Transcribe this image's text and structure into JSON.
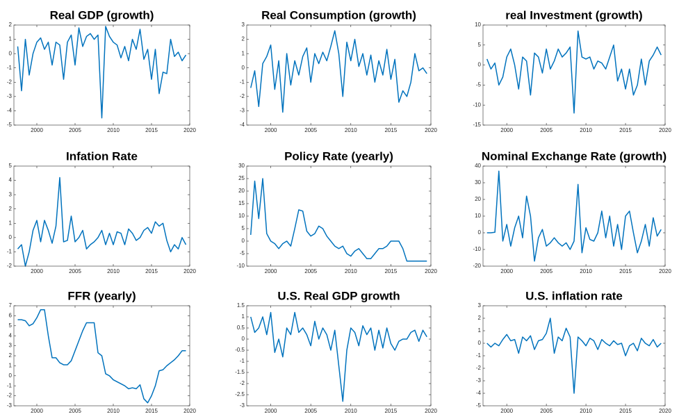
{
  "chart_data": [
    {
      "type": "line",
      "title": "Real GDP (growth)",
      "color": "#0072bd",
      "xlim": [
        1997,
        2020
      ],
      "xticks": [
        2000,
        2005,
        2010,
        2015,
        2020
      ],
      "ylim": [
        -5,
        2
      ],
      "yticks": [
        -5,
        -4,
        -3,
        -2,
        -1,
        0,
        1,
        2
      ],
      "x": [
        1997.5,
        1998,
        1998.5,
        1999,
        1999.5,
        2000,
        2000.5,
        2001,
        2001.5,
        2002,
        2002.5,
        2003,
        2003.5,
        2004,
        2004.5,
        2005,
        2005.5,
        2006,
        2006.5,
        2007,
        2007.5,
        2008,
        2008.5,
        2009,
        2009.5,
        2010,
        2010.5,
        2011,
        2011.5,
        2012,
        2012.5,
        2013,
        2013.5,
        2014,
        2014.5,
        2015,
        2015.5,
        2016,
        2016.5,
        2017,
        2017.5,
        2018,
        2018.5,
        2019,
        2019.5
      ],
      "values": [
        0.5,
        -2.6,
        1.0,
        -1.5,
        0,
        0.8,
        1.1,
        0.3,
        0.8,
        -0.8,
        0.8,
        0.6,
        -1.8,
        0.8,
        1.3,
        -0.8,
        1.8,
        0.5,
        1.2,
        1.4,
        1.0,
        1.3,
        -4.5,
        1.9,
        1.2,
        0.8,
        0.6,
        -0.3,
        0.5,
        -0.5,
        1.0,
        0.3,
        1.7,
        -0.4,
        0.3,
        -1.8,
        0.3,
        -2.8,
        -1.3,
        -1.4,
        1.0,
        -0.2,
        0.1,
        -0.5,
        -0.1
      ]
    },
    {
      "type": "line",
      "title": "Real Consumption (growth)",
      "color": "#0072bd",
      "xlim": [
        1997,
        2020
      ],
      "xticks": [
        2000,
        2005,
        2010,
        2015,
        2020
      ],
      "ylim": [
        -4,
        3
      ],
      "yticks": [
        -4,
        -3,
        -2,
        -1,
        0,
        1,
        2,
        3
      ],
      "x": [
        1997.5,
        1998,
        1998.5,
        1999,
        1999.5,
        2000,
        2000.5,
        2001,
        2001.5,
        2002,
        2002.5,
        2003,
        2003.5,
        2004,
        2004.5,
        2005,
        2005.5,
        2006,
        2006.5,
        2007,
        2007.5,
        2008,
        2008.5,
        2009,
        2009.5,
        2010,
        2010.5,
        2011,
        2011.5,
        2012,
        2012.5,
        2013,
        2013.5,
        2014,
        2014.5,
        2015,
        2015.5,
        2016,
        2016.5,
        2017,
        2017.5,
        2018,
        2018.5,
        2019,
        2019.5
      ],
      "values": [
        -1.4,
        -0.2,
        -2.7,
        0.3,
        0.8,
        1.6,
        -1.5,
        0.5,
        -3.1,
        1.0,
        -1.2,
        0.5,
        -0.5,
        0.8,
        1.4,
        -1.0,
        1.0,
        0.3,
        1.1,
        0.5,
        1.5,
        2.6,
        1.0,
        -2.0,
        1.8,
        0.5,
        2.0,
        0.1,
        1.0,
        -0.5,
        0.9,
        -1.0,
        0.5,
        -0.5,
        1.3,
        -0.8,
        0.6,
        -2.4,
        -1.6,
        -2.0,
        -1.0,
        1.0,
        -0.2,
        0,
        -0.4
      ]
    },
    {
      "type": "line",
      "title": "real Investment (growth)",
      "color": "#0072bd",
      "xlim": [
        1997,
        2020
      ],
      "xticks": [
        2000,
        2005,
        2010,
        2015,
        2020
      ],
      "ylim": [
        -15,
        10
      ],
      "yticks": [
        -15,
        -10,
        -5,
        0,
        5,
        10
      ],
      "x": [
        1997.5,
        1998,
        1998.5,
        1999,
        1999.5,
        2000,
        2000.5,
        2001,
        2001.5,
        2002,
        2002.5,
        2003,
        2003.5,
        2004,
        2004.5,
        2005,
        2005.5,
        2006,
        2006.5,
        2007,
        2007.5,
        2008,
        2008.5,
        2009,
        2009.5,
        2010,
        2010.5,
        2011,
        2011.5,
        2012,
        2012.5,
        2013,
        2013.5,
        2014,
        2014.5,
        2015,
        2015.5,
        2016,
        2016.5,
        2017,
        2017.5,
        2018,
        2018.5,
        2019,
        2019.5
      ],
      "values": [
        1.5,
        -1.0,
        0.5,
        -5.0,
        -3.0,
        2.0,
        4.0,
        0,
        -6.0,
        2.0,
        1.0,
        -7.5,
        3.0,
        2.0,
        -2.0,
        4.0,
        -1.0,
        1.0,
        4.0,
        2.0,
        3.0,
        4.5,
        -12.0,
        8.5,
        2.0,
        1.5,
        2.0,
        -1.0,
        1.0,
        0.5,
        -1.0,
        2.0,
        5.0,
        -4.0,
        -1.0,
        -6.0,
        -1.0,
        -7.5,
        -5.0,
        1.5,
        -5.0,
        1.0,
        2.5,
        4.5,
        2.5
      ]
    },
    {
      "type": "line",
      "title": "Infation Rate",
      "color": "#0072bd",
      "xlim": [
        1997,
        2020
      ],
      "xticks": [
        2000,
        2005,
        2010,
        2015,
        2020
      ],
      "ylim": [
        -2,
        5
      ],
      "yticks": [
        -2,
        -1,
        0,
        1,
        2,
        3,
        4,
        5
      ],
      "x": [
        1997.5,
        1998,
        1998.5,
        1999,
        1999.5,
        2000,
        2000.5,
        2001,
        2001.5,
        2002,
        2002.5,
        2003,
        2003.5,
        2004,
        2004.5,
        2005,
        2005.5,
        2006,
        2006.5,
        2007,
        2007.5,
        2008,
        2008.5,
        2009,
        2009.5,
        2010,
        2010.5,
        2011,
        2011.5,
        2012,
        2012.5,
        2013,
        2013.5,
        2014,
        2014.5,
        2015,
        2015.5,
        2016,
        2016.5,
        2017,
        2017.5,
        2018,
        2018.5,
        2019,
        2019.5
      ],
      "values": [
        -0.8,
        -0.5,
        -2.0,
        -1.0,
        0.5,
        1.2,
        -0.3,
        1.2,
        0.5,
        -0.4,
        0.8,
        4.2,
        -0.3,
        -0.2,
        1.5,
        -0.3,
        0,
        0.5,
        -0.8,
        -0.5,
        -0.3,
        0,
        0.5,
        -0.5,
        0.3,
        -0.5,
        0.4,
        0.3,
        -0.5,
        0.6,
        0.3,
        -0.2,
        0,
        0.5,
        0.7,
        0.3,
        1.1,
        0.8,
        1.0,
        -0.2,
        -1.0,
        -0.5,
        -0.8,
        0,
        -0.5
      ]
    },
    {
      "type": "line",
      "title": "Policy Rate (yearly)",
      "color": "#0072bd",
      "xlim": [
        1997,
        2020
      ],
      "xticks": [
        2000,
        2005,
        2010,
        2015,
        2020
      ],
      "ylim": [
        -10,
        30
      ],
      "yticks": [
        -10,
        -5,
        0,
        5,
        10,
        15,
        20,
        25,
        30
      ],
      "x": [
        1997.5,
        1998,
        1998.5,
        1999,
        1999.5,
        2000,
        2000.5,
        2001,
        2001.5,
        2002,
        2002.5,
        2003,
        2003.5,
        2004,
        2004.5,
        2005,
        2005.5,
        2006,
        2006.5,
        2007,
        2007.5,
        2008,
        2008.5,
        2009,
        2009.5,
        2010,
        2010.5,
        2011,
        2011.5,
        2012,
        2012.5,
        2013,
        2013.5,
        2014,
        2014.5,
        2015,
        2015.5,
        2016,
        2016.5,
        2017,
        2017.5,
        2018,
        2018.5,
        2019,
        2019.5
      ],
      "values": [
        2.5,
        24,
        9,
        25,
        3,
        0,
        -1,
        -3,
        -1,
        0,
        -2,
        5,
        12.5,
        12,
        4,
        2,
        3,
        6,
        5,
        2,
        0,
        -2,
        -3,
        -2,
        -5,
        -6,
        -4,
        -3,
        -5,
        -7,
        -7,
        -5,
        -3,
        -3,
        -2,
        0,
        0,
        0,
        -3,
        -8,
        -8,
        -8,
        -8,
        -8,
        -8
      ]
    },
    {
      "type": "line",
      "title": "Nominal Exchange Rate (growth)",
      "color": "#0072bd",
      "xlim": [
        1997,
        2020
      ],
      "xticks": [
        2000,
        2005,
        2010,
        2015,
        2020
      ],
      "ylim": [
        -20,
        40
      ],
      "yticks": [
        -20,
        -10,
        0,
        10,
        20,
        30,
        40
      ],
      "x": [
        1997.5,
        1998,
        1998.5,
        1999,
        1999.5,
        2000,
        2000.5,
        2001,
        2001.5,
        2002,
        2002.5,
        2003,
        2003.5,
        2004,
        2004.5,
        2005,
        2005.5,
        2006,
        2006.5,
        2007,
        2007.5,
        2008,
        2008.5,
        2009,
        2009.5,
        2010,
        2010.5,
        2011,
        2011.5,
        2012,
        2012.5,
        2013,
        2013.5,
        2014,
        2014.5,
        2015,
        2015.5,
        2016,
        2016.5,
        2017,
        2017.5,
        2018,
        2018.5,
        2019,
        2019.5
      ],
      "values": [
        0,
        0,
        0.3,
        37,
        -5,
        5,
        -8,
        3,
        10,
        -3,
        22,
        10,
        -17,
        -3,
        2,
        -8,
        -6,
        -3,
        -6,
        -8,
        -6,
        -10,
        -5,
        29,
        -12,
        3,
        -4,
        -5,
        0,
        13,
        -3,
        10,
        -8,
        5,
        -10,
        10,
        13,
        0,
        -12,
        -5,
        5,
        -8,
        9,
        -2,
        2
      ]
    },
    {
      "type": "line",
      "title": "FFR (yearly)",
      "color": "#0072bd",
      "xlim": [
        1997,
        2020
      ],
      "xticks": [
        2000,
        2005,
        2010,
        2015,
        2020
      ],
      "ylim": [
        -3,
        7
      ],
      "yticks": [
        -3,
        -2,
        -1,
        0,
        1,
        2,
        3,
        4,
        5,
        6,
        7
      ],
      "x": [
        1997.5,
        1998,
        1998.5,
        1999,
        1999.5,
        2000,
        2000.5,
        2001,
        2001.5,
        2002,
        2002.5,
        2003,
        2003.5,
        2004,
        2004.5,
        2005,
        2005.5,
        2006,
        2006.5,
        2007,
        2007.5,
        2008,
        2008.5,
        2009,
        2009.5,
        2010,
        2010.5,
        2011,
        2011.5,
        2012,
        2012.5,
        2013,
        2013.5,
        2014,
        2014.5,
        2015,
        2015.5,
        2016,
        2016.5,
        2017,
        2017.5,
        2018,
        2018.5,
        2019,
        2019.5
      ],
      "values": [
        5.6,
        5.6,
        5.5,
        5.0,
        5.2,
        5.8,
        6.6,
        6.6,
        4.0,
        1.8,
        1.8,
        1.3,
        1.1,
        1.1,
        1.5,
        2.5,
        3.5,
        4.5,
        5.3,
        5.3,
        5.3,
        2.3,
        2.0,
        0.2,
        0,
        -0.4,
        -0.6,
        -0.8,
        -1.0,
        -1.3,
        -1.2,
        -1.3,
        -0.9,
        -2.3,
        -2.7,
        -2.0,
        -1.0,
        0.5,
        0.6,
        1.0,
        1.3,
        1.6,
        2.0,
        2.5,
        2.5
      ]
    },
    {
      "type": "line",
      "title": "U.S. Real GDP growth",
      "color": "#0072bd",
      "xlim": [
        1997,
        2020
      ],
      "xticks": [
        2000,
        2005,
        2010,
        2015,
        2020
      ],
      "ylim": [
        -3,
        1.5
      ],
      "yticks": [
        -3,
        -2.5,
        -2,
        -1.5,
        -1,
        -0.5,
        0,
        0.5,
        1,
        1.5
      ],
      "x": [
        1997.5,
        1998,
        1998.5,
        1999,
        1999.5,
        2000,
        2000.5,
        2001,
        2001.5,
        2002,
        2002.5,
        2003,
        2003.5,
        2004,
        2004.5,
        2005,
        2005.5,
        2006,
        2006.5,
        2007,
        2007.5,
        2008,
        2008.5,
        2009,
        2009.5,
        2010,
        2010.5,
        2011,
        2011.5,
        2012,
        2012.5,
        2013,
        2013.5,
        2014,
        2014.5,
        2015,
        2015.5,
        2016,
        2016.5,
        2017,
        2017.5,
        2018,
        2018.5,
        2019,
        2019.5
      ],
      "values": [
        1.0,
        0.3,
        0.5,
        1.0,
        0.2,
        1.2,
        -0.6,
        0,
        -0.8,
        0.5,
        0.2,
        1.2,
        0.3,
        0.5,
        0.2,
        -0.3,
        0.8,
        0,
        0.5,
        0.2,
        -0.5,
        0.4,
        -1.2,
        -2.8,
        -0.5,
        0.5,
        0.3,
        -0.3,
        0.6,
        0.2,
        0.5,
        -0.5,
        0.4,
        -0.4,
        0.5,
        -0.2,
        -0.5,
        -0.1,
        0,
        0,
        0.3,
        0.4,
        -0.1,
        0.4,
        0.1
      ]
    },
    {
      "type": "line",
      "title": "U.S. inflation rate",
      "color": "#0072bd",
      "xlim": [
        1997,
        2020
      ],
      "xticks": [
        2000,
        2005,
        2010,
        2015,
        2020
      ],
      "ylim": [
        -5,
        3
      ],
      "yticks": [
        -5,
        -4,
        -3,
        -2,
        -1,
        0,
        1,
        2,
        3
      ],
      "x": [
        1997.5,
        1998,
        1998.5,
        1999,
        1999.5,
        2000,
        2000.5,
        2001,
        2001.5,
        2002,
        2002.5,
        2003,
        2003.5,
        2004,
        2004.5,
        2005,
        2005.5,
        2006,
        2006.5,
        2007,
        2007.5,
        2008,
        2008.5,
        2009,
        2009.5,
        2010,
        2010.5,
        2011,
        2011.5,
        2012,
        2012.5,
        2013,
        2013.5,
        2014,
        2014.5,
        2015,
        2015.5,
        2016,
        2016.5,
        2017,
        2017.5,
        2018,
        2018.5,
        2019,
        2019.5
      ],
      "values": [
        0,
        -0.3,
        0,
        -0.2,
        0.3,
        0.7,
        0.2,
        0.3,
        -0.8,
        0.5,
        0.2,
        0.6,
        -0.5,
        0.2,
        0.3,
        0.8,
        2.0,
        -0.8,
        0.5,
        0.2,
        1.2,
        0.5,
        -4.0,
        0.5,
        0.2,
        -0.2,
        0.4,
        0.2,
        -0.5,
        0.3,
        0,
        -0.2,
        0.2,
        -0.1,
        0,
        -1.0,
        -0.2,
        0,
        -0.6,
        0.4,
        0,
        -0.2,
        0.3,
        -0.3,
        0
      ]
    }
  ]
}
